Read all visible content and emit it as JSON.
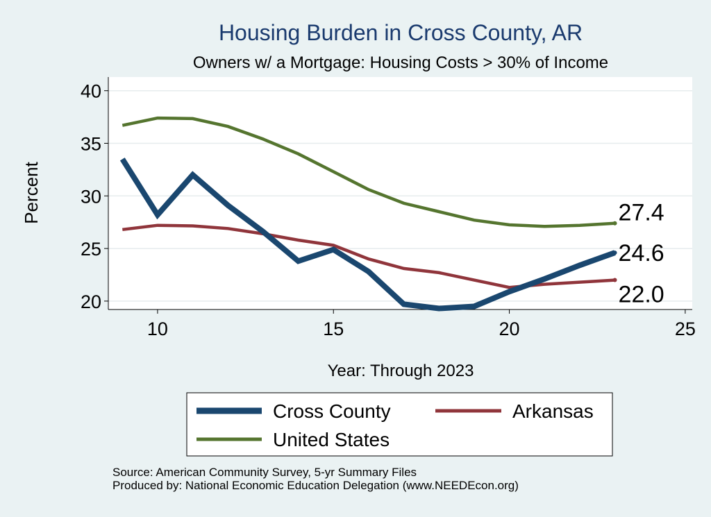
{
  "chart_data": {
    "type": "line",
    "title": "Housing Burden in Cross County, AR",
    "subtitle": "Owners w/ a Mortgage: Housing Costs > 30% of Income",
    "xlabel": "Year: Through 2023",
    "ylabel": "Percent",
    "xlim": [
      8.6,
      25.2
    ],
    "ylim": [
      19.2,
      41.3
    ],
    "x_ticks": [
      "10",
      "15",
      "20",
      "25"
    ],
    "x_tick_values": [
      10,
      15,
      20,
      25
    ],
    "y_ticks": [
      "20",
      "25",
      "30",
      "35",
      "40"
    ],
    "y_tick_values": [
      20,
      25,
      30,
      35,
      40
    ],
    "grid": true,
    "legend_position": "bottom",
    "series": [
      {
        "name": "Cross County",
        "color": "#1a476f",
        "x": [
          9,
          10,
          11,
          12,
          13,
          14,
          15,
          16,
          17,
          18,
          19,
          20,
          21,
          22,
          23
        ],
        "values": [
          33.5,
          28.2,
          32.0,
          29.1,
          26.6,
          23.8,
          24.9,
          22.8,
          19.7,
          19.3,
          19.5,
          20.9,
          22.1,
          23.4,
          24.6
        ],
        "end_label": "24.6"
      },
      {
        "name": "Arkansas",
        "color": "#90353b",
        "x": [
          9,
          10,
          11,
          12,
          13,
          14,
          15,
          16,
          17,
          18,
          19,
          20,
          21,
          22,
          23
        ],
        "values": [
          26.8,
          27.2,
          27.15,
          26.9,
          26.4,
          25.8,
          25.3,
          24.0,
          23.1,
          22.7,
          22.0,
          21.3,
          21.6,
          21.8,
          22.0
        ],
        "end_label": "22.0"
      },
      {
        "name": "United States",
        "color": "#55752f",
        "x": [
          9,
          10,
          11,
          12,
          13,
          14,
          15,
          16,
          17,
          18,
          19,
          20,
          21,
          22,
          23
        ],
        "values": [
          36.7,
          37.4,
          37.35,
          36.6,
          35.4,
          34.0,
          32.3,
          30.6,
          29.3,
          28.5,
          27.7,
          27.25,
          27.1,
          27.2,
          27.4
        ],
        "end_label": "27.4"
      }
    ]
  },
  "footer": {
    "source": "Source: American Community Survey, 5-yr Summary Files",
    "produced": "Produced by: National Economic Education Delegation (www.NEEDEcon.org)"
  }
}
